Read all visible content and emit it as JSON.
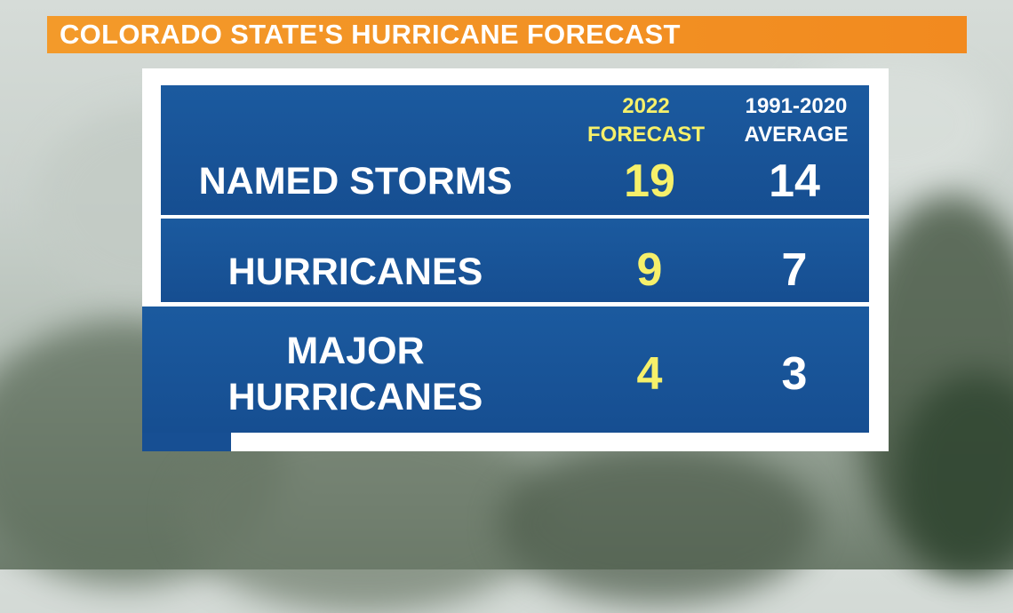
{
  "title": "COLORADO STATE'S HURRICANE FORECAST",
  "columns": {
    "forecast": {
      "line1": "2022",
      "line2": "FORECAST"
    },
    "average": {
      "line1": "1991-2020",
      "line2": "AVERAGE"
    }
  },
  "rows": [
    {
      "label": "NAMED STORMS",
      "forecast": "19",
      "average": "14"
    },
    {
      "label": "HURRICANES",
      "forecast": "9",
      "average": "7"
    },
    {
      "label_line1": "MAJOR",
      "label_line2": "HURRICANES",
      "forecast": "4",
      "average": "3"
    }
  ],
  "colors": {
    "title_bar": "#f28a1f",
    "panel": "#174f93",
    "forecast_text": "#f6f06a",
    "average_text": "#ffffff"
  }
}
